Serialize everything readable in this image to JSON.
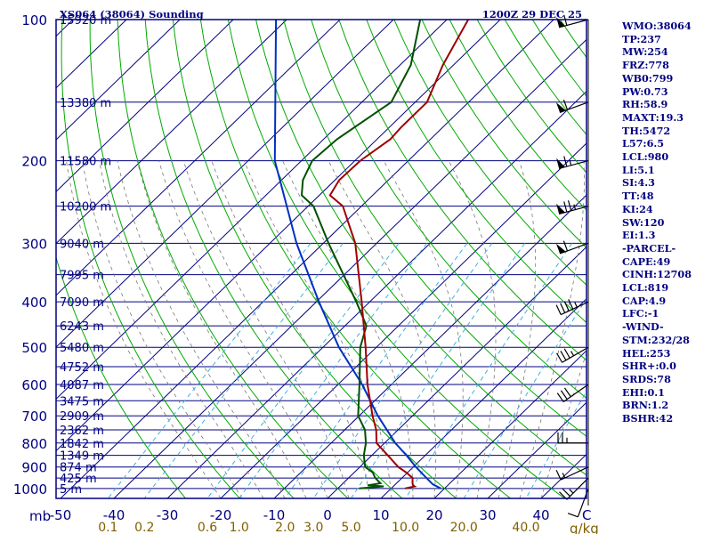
{
  "header": {
    "title": "XS064 (38064) Sounding",
    "datetime": "1200Z 29 DEC 25"
  },
  "colors": {
    "frame": "#000080",
    "temperature": "#a00000",
    "dewpoint": "#005000",
    "parcel": "#0030c0",
    "dry_adiabat": "#00aa00",
    "mixing_ratio": "#40b0e0",
    "moist_adiabat": "#777777",
    "wind_barb": "#000000",
    "stats_text": "#000080",
    "mixing_label": "#806000"
  },
  "stats": [
    "WMO:38064",
    "TP:237",
    "MW:254",
    "FRZ:778",
    "WB0:799",
    "PW:0.73",
    "RH:58.9",
    "MAXT:19.3",
    "TH:5472",
    "L57:6.5",
    "LCL:980",
    "LI:5.1",
    "SI:4.3",
    "TT:48",
    "KI:24",
    "SW:120",
    "EI:1.3",
    "-PARCEL-",
    "CAPE:49",
    "CINH:12708",
    "LCL:819",
    "CAP:4.9",
    "LFC:-1",
    "-WIND-",
    "STM:232/28",
    "HEL:253",
    "SHR+:0.0",
    "SRDS:78",
    "EHI:0.1",
    "BRN:1.2",
    "BSHR:42"
  ],
  "chart_data": {
    "type": "line",
    "diagram": "skew-T log-p",
    "pressure_levels": [
      {
        "p": 100,
        "label": "100",
        "height": "15920 m"
      },
      {
        "p": 150,
        "label": "",
        "height": "13380 m"
      },
      {
        "p": 200,
        "label": "200",
        "height": "11580 m"
      },
      {
        "p": 250,
        "label": "",
        "height": "10200 m"
      },
      {
        "p": 300,
        "label": "300",
        "height": "9040 m"
      },
      {
        "p": 350,
        "label": "",
        "height": "7995 m"
      },
      {
        "p": 400,
        "label": "400",
        "height": "7090 m"
      },
      {
        "p": 450,
        "label": "",
        "height": "6243 m"
      },
      {
        "p": 500,
        "label": "500",
        "height": "5480 m"
      },
      {
        "p": 550,
        "label": "",
        "height": "4752 m"
      },
      {
        "p": 600,
        "label": "600",
        "height": "4087 m"
      },
      {
        "p": 650,
        "label": "",
        "height": "3475 m"
      },
      {
        "p": 700,
        "label": "700",
        "height": "2909 m"
      },
      {
        "p": 750,
        "label": "",
        "height": "2362 m"
      },
      {
        "p": 800,
        "label": "800",
        "height": "1842 m"
      },
      {
        "p": 850,
        "label": "",
        "height": "1349 m"
      },
      {
        "p": 900,
        "label": "900",
        "height": "874 m"
      },
      {
        "p": 950,
        "label": "",
        "height": "425 m"
      },
      {
        "p": 1000,
        "label": "1000",
        "height": "5 m"
      }
    ],
    "y_axis_label": "mb",
    "x_axis_label": "C",
    "temperature_ticks": [
      {
        "t": -50,
        "label": "-50"
      },
      {
        "t": -40,
        "label": "-40"
      },
      {
        "t": -30,
        "label": "-30"
      },
      {
        "t": -20,
        "label": "-20"
      },
      {
        "t": -10,
        "label": "-10"
      },
      {
        "t": 0,
        "label": "0"
      },
      {
        "t": 10,
        "label": "10"
      },
      {
        "t": 20,
        "label": "20"
      },
      {
        "t": 30,
        "label": "30"
      },
      {
        "t": 40,
        "label": "40"
      }
    ],
    "mixing_ratio_label": "g/kg",
    "mixing_ratio_ticks": [
      {
        "w": 0.1,
        "label": "0.1"
      },
      {
        "w": 0.2,
        "label": "0.2"
      },
      {
        "w": 0.6,
        "label": "0.6"
      },
      {
        "w": 1.0,
        "label": "1.0"
      },
      {
        "w": 2.0,
        "label": "2.0"
      },
      {
        "w": 3.0,
        "label": "3.0"
      },
      {
        "w": 5.0,
        "label": "5.0"
      },
      {
        "w": 10.0,
        "label": "10.0"
      },
      {
        "w": 20.0,
        "label": "20.0"
      },
      {
        "w": 40.0,
        "label": "40.0"
      }
    ],
    "temperature_profile": [
      {
        "p": 1000,
        "t": 12.6
      },
      {
        "p": 990,
        "t": 14.0
      },
      {
        "p": 985,
        "t": 13.5
      },
      {
        "p": 975,
        "t": 13.0
      },
      {
        "p": 950,
        "t": 12.0
      },
      {
        "p": 925,
        "t": 9.8
      },
      {
        "p": 900,
        "t": 7.2
      },
      {
        "p": 850,
        "t": 3.0
      },
      {
        "p": 800,
        "t": -1.5
      },
      {
        "p": 750,
        "t": -4.1
      },
      {
        "p": 700,
        "t": -7.5
      },
      {
        "p": 600,
        "t": -14.5
      },
      {
        "p": 500,
        "t": -22.0
      },
      {
        "p": 400,
        "t": -31.5
      },
      {
        "p": 300,
        "t": -44.0
      },
      {
        "p": 250,
        "t": -53.5
      },
      {
        "p": 237,
        "t": -58.0
      },
      {
        "p": 220,
        "t": -59.2
      },
      {
        "p": 200,
        "t": -59.0
      },
      {
        "p": 180,
        "t": -57.5
      },
      {
        "p": 170,
        "t": -57.8
      },
      {
        "p": 150,
        "t": -57.8
      },
      {
        "p": 125,
        "t": -62.0
      },
      {
        "p": 100,
        "t": -66.0
      }
    ],
    "dewpoint_profile": [
      {
        "p": 1000,
        "td": 4.0
      },
      {
        "p": 990,
        "td": 8.2
      },
      {
        "p": 985,
        "td": 5.0
      },
      {
        "p": 975,
        "td": 7.0
      },
      {
        "p": 950,
        "td": 5.0
      },
      {
        "p": 925,
        "td": 3.5
      },
      {
        "p": 900,
        "td": 1.0
      },
      {
        "p": 850,
        "td": -1.5
      },
      {
        "p": 800,
        "td": -3.5
      },
      {
        "p": 750,
        "td": -6.2
      },
      {
        "p": 700,
        "td": -10.2
      },
      {
        "p": 600,
        "td": -16.0
      },
      {
        "p": 500,
        "td": -23.0
      },
      {
        "p": 450,
        "td": -26.0
      },
      {
        "p": 400,
        "td": -32.5
      },
      {
        "p": 300,
        "td": -49.0
      },
      {
        "p": 250,
        "td": -59.0
      },
      {
        "p": 237,
        "td": -63.3
      },
      {
        "p": 220,
        "td": -66.0
      },
      {
        "p": 200,
        "td": -68.0
      },
      {
        "p": 180,
        "td": -67.5
      },
      {
        "p": 150,
        "td": -64.5
      },
      {
        "p": 125,
        "td": -68.0
      },
      {
        "p": 100,
        "td": -75.0
      }
    ],
    "parcel_profile": [
      {
        "p": 1000,
        "t": 19.3
      },
      {
        "p": 980,
        "t": 17.0
      },
      {
        "p": 950,
        "t": 14.6
      },
      {
        "p": 900,
        "t": 10.5
      },
      {
        "p": 850,
        "t": 6.5
      },
      {
        "p": 800,
        "t": 2.0
      },
      {
        "p": 700,
        "t": -6.5
      },
      {
        "p": 600,
        "t": -15.5
      },
      {
        "p": 500,
        "t": -27.0
      },
      {
        "p": 400,
        "t": -39.5
      },
      {
        "p": 300,
        "t": -55.0
      },
      {
        "p": 200,
        "t": -75.0
      },
      {
        "p": 100,
        "t": -102.0
      }
    ],
    "wind_barbs": [
      {
        "p": 100,
        "dir": 255,
        "speed_kt": 60
      },
      {
        "p": 150,
        "dir": 250,
        "speed_kt": 60
      },
      {
        "p": 200,
        "dir": 255,
        "speed_kt": 65
      },
      {
        "p": 250,
        "dir": 255,
        "speed_kt": 75
      },
      {
        "p": 300,
        "dir": 250,
        "speed_kt": 60
      },
      {
        "p": 400,
        "dir": 245,
        "speed_kt": 45
      },
      {
        "p": 500,
        "dir": 240,
        "speed_kt": 35
      },
      {
        "p": 600,
        "dir": 235,
        "speed_kt": 30
      },
      {
        "p": 800,
        "dir": 270,
        "speed_kt": 25
      },
      {
        "p": 900,
        "dir": 245,
        "speed_kt": 15
      },
      {
        "p": 950,
        "dir": 225,
        "speed_kt": 25
      },
      {
        "p": 1000,
        "dir": 200,
        "speed_kt": 10
      }
    ],
    "grid": true
  }
}
